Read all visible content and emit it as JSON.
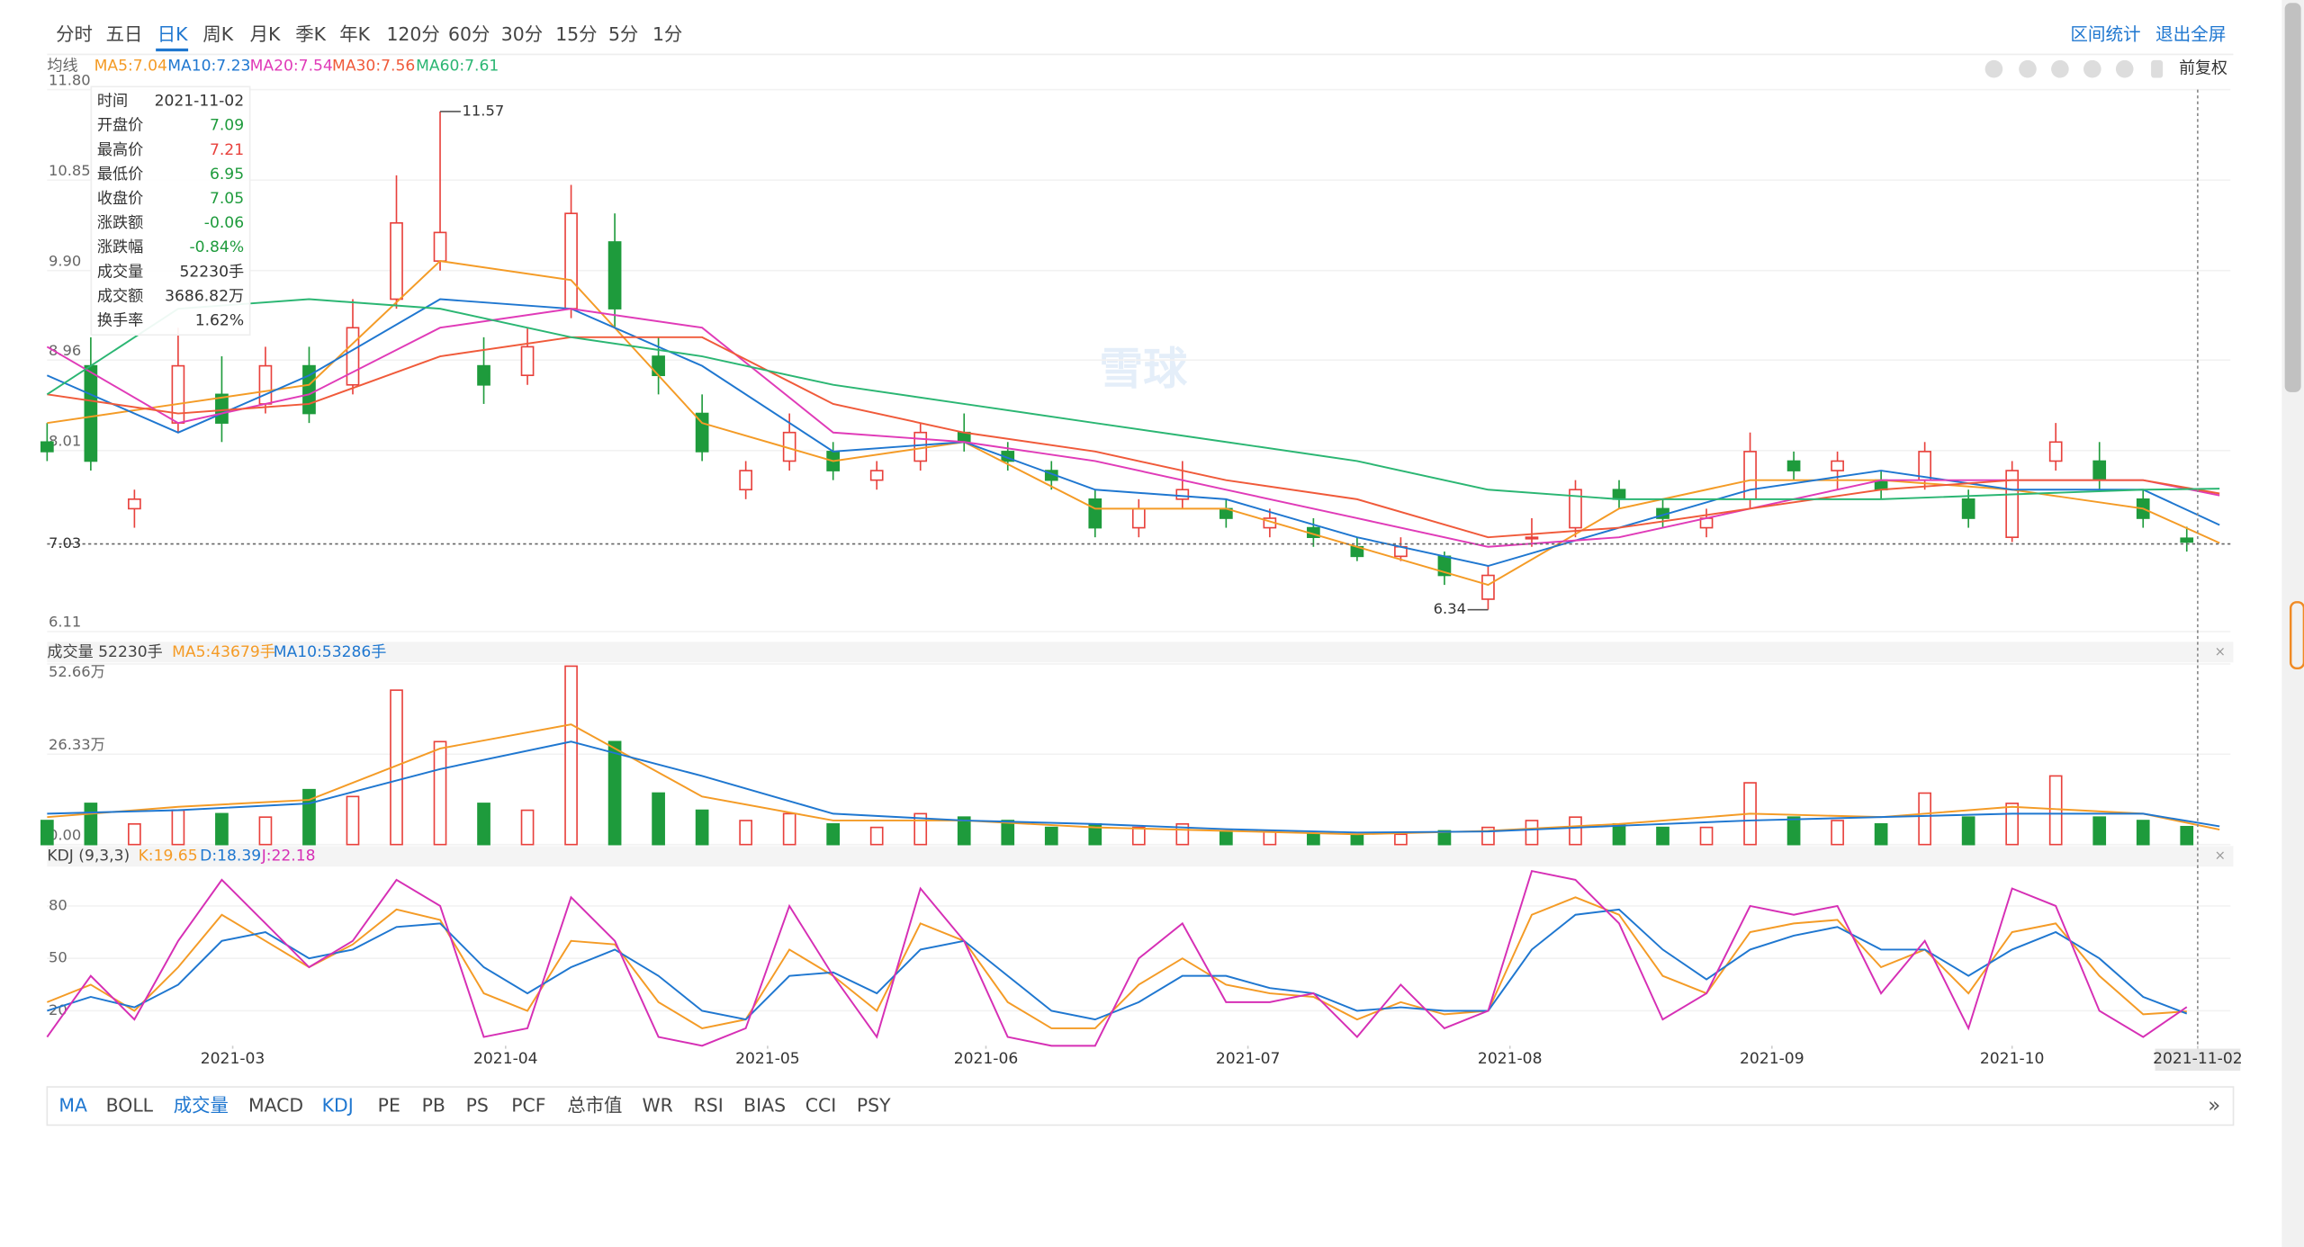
{
  "toolbar": {
    "periods": [
      {
        "label": "分时"
      },
      {
        "label": "五日"
      },
      {
        "label": "日K",
        "active": true
      },
      {
        "label": "周K"
      },
      {
        "label": "月K"
      },
      {
        "label": "季K"
      },
      {
        "label": "年K"
      },
      {
        "label": "120分"
      },
      {
        "label": "60分"
      },
      {
        "label": "30分"
      },
      {
        "label": "15分"
      },
      {
        "label": "5分"
      },
      {
        "label": "1分"
      }
    ],
    "actions": [
      "区间统计",
      "退出全屏"
    ]
  },
  "ma_header": {
    "label": "均线",
    "items": [
      {
        "text": "MA5:7.04",
        "color": "#f49b26"
      },
      {
        "text": "MA10:7.23",
        "color": "#1f77d0"
      },
      {
        "text": "MA20:7.54",
        "color": "#e03bb8"
      },
      {
        "text": "MA30:7.56",
        "color": "#f05a3a"
      },
      {
        "text": "MA60:7.61",
        "color": "#2bb673"
      }
    ],
    "adjust": "前复权"
  },
  "watermark": "雪球",
  "tooltip": {
    "rows": [
      {
        "label": "时间",
        "value": "2021-11-02",
        "color": "#333333"
      },
      {
        "label": "开盘价",
        "value": "7.09",
        "color": "#1e9b3c"
      },
      {
        "label": "最高价",
        "value": "7.21",
        "color": "#e8413c"
      },
      {
        "label": "最低价",
        "value": "6.95",
        "color": "#1e9b3c"
      },
      {
        "label": "收盘价",
        "value": "7.05",
        "color": "#1e9b3c"
      },
      {
        "label": "涨跌额",
        "value": "-0.06",
        "color": "#1e9b3c"
      },
      {
        "label": "涨跌幅",
        "value": "-0.84%",
        "color": "#1e9b3c"
      },
      {
        "label": "成交量",
        "value": "52230手",
        "color": "#333333"
      },
      {
        "label": "成交额",
        "value": "3686.82万",
        "color": "#333333"
      },
      {
        "label": "换手率",
        "value": "1.62%",
        "color": "#333333"
      }
    ]
  },
  "chart_data": [
    {
      "type": "candlestick",
      "up_color": "#e8413c",
      "down_color": "#1e9b3c",
      "xlim": [
        0,
        200
      ],
      "x": [
        0,
        4,
        8,
        12,
        16,
        20,
        24,
        28,
        32,
        36,
        40,
        44,
        48,
        52,
        56,
        60,
        64,
        68,
        72,
        76,
        80,
        84,
        88,
        92,
        96,
        100,
        104,
        108,
        112,
        116,
        120,
        124,
        128,
        132,
        136,
        140,
        144,
        148,
        152,
        156,
        160,
        164,
        168,
        172,
        176,
        180,
        184,
        188,
        192,
        196
      ],
      "open": [
        8.1,
        8.9,
        7.4,
        8.3,
        8.6,
        8.5,
        8.9,
        8.7,
        9.6,
        10.0,
        8.9,
        8.8,
        9.5,
        10.2,
        9.0,
        8.4,
        7.6,
        7.9,
        8.0,
        7.7,
        7.9,
        8.2,
        8.0,
        7.8,
        7.5,
        7.2,
        7.5,
        7.4,
        7.2,
        7.2,
        7.0,
        6.9,
        6.9,
        6.45,
        7.1,
        7.2,
        7.6,
        7.4,
        7.2,
        7.5,
        7.9,
        7.8,
        7.7,
        7.7,
        7.5,
        7.1,
        7.9,
        7.9,
        7.5,
        7.09
      ],
      "high": [
        8.3,
        9.2,
        7.6,
        9.3,
        9.0,
        9.1,
        9.1,
        9.6,
        10.9,
        11.57,
        9.2,
        9.3,
        10.8,
        10.5,
        9.2,
        8.6,
        7.9,
        8.4,
        8.1,
        7.9,
        8.3,
        8.4,
        8.1,
        7.9,
        7.6,
        7.5,
        7.9,
        7.5,
        7.4,
        7.3,
        7.1,
        7.1,
        6.95,
        6.8,
        7.3,
        7.7,
        7.7,
        7.5,
        7.4,
        8.2,
        8.0,
        8.0,
        7.8,
        8.1,
        7.6,
        7.9,
        8.3,
        8.1,
        7.6,
        7.21
      ],
      "low": [
        7.9,
        7.8,
        7.2,
        8.2,
        8.1,
        8.4,
        8.3,
        8.6,
        9.5,
        9.9,
        8.5,
        8.7,
        9.4,
        9.3,
        8.6,
        7.9,
        7.5,
        7.8,
        7.7,
        7.6,
        7.8,
        8.0,
        7.8,
        7.6,
        7.1,
        7.1,
        7.4,
        7.2,
        7.1,
        7.0,
        6.85,
        6.85,
        6.6,
        6.34,
        7.0,
        7.1,
        7.4,
        7.2,
        7.1,
        7.4,
        7.7,
        7.6,
        7.5,
        7.6,
        7.2,
        7.05,
        7.8,
        7.6,
        7.2,
        6.95
      ],
      "close": [
        8.0,
        7.9,
        7.5,
        8.9,
        8.3,
        8.9,
        8.4,
        9.3,
        10.4,
        10.3,
        8.7,
        9.1,
        10.5,
        9.5,
        8.8,
        8.0,
        7.8,
        8.2,
        7.8,
        7.8,
        8.2,
        8.1,
        7.9,
        7.7,
        7.2,
        7.4,
        7.6,
        7.3,
        7.3,
        7.1,
        6.9,
        7.0,
        6.7,
        6.7,
        7.1,
        7.6,
        7.5,
        7.3,
        7.3,
        8.0,
        7.8,
        7.9,
        7.6,
        8.0,
        7.3,
        7.8,
        8.1,
        7.7,
        7.3,
        7.05
      ],
      "ma": [
        {
          "color": "#f49b26",
          "x": [
            0,
            12,
            24,
            36,
            48,
            60,
            72,
            84,
            96,
            108,
            120,
            132,
            144,
            156,
            168,
            180,
            192,
            199
          ],
          "values": [
            8.3,
            8.5,
            8.7,
            10.0,
            9.8,
            8.3,
            7.9,
            8.1,
            7.4,
            7.4,
            7.0,
            6.6,
            7.4,
            7.7,
            7.7,
            7.6,
            7.4,
            7.04
          ]
        },
        {
          "color": "#1f77d0",
          "x": [
            0,
            12,
            24,
            36,
            48,
            60,
            72,
            84,
            96,
            108,
            120,
            132,
            144,
            156,
            168,
            180,
            192,
            199
          ],
          "values": [
            8.8,
            8.2,
            8.8,
            9.6,
            9.5,
            8.9,
            8.0,
            8.1,
            7.6,
            7.5,
            7.1,
            6.8,
            7.2,
            7.6,
            7.8,
            7.6,
            7.6,
            7.23
          ]
        },
        {
          "color": "#e03bb8",
          "x": [
            0,
            12,
            24,
            36,
            48,
            60,
            72,
            84,
            96,
            108,
            120,
            132,
            144,
            156,
            168,
            180,
            192,
            199
          ],
          "values": [
            9.1,
            8.3,
            8.6,
            9.3,
            9.5,
            9.3,
            8.2,
            8.1,
            7.9,
            7.6,
            7.3,
            7.0,
            7.1,
            7.4,
            7.7,
            7.7,
            7.7,
            7.54
          ]
        },
        {
          "color": "#f05a3a",
          "x": [
            0,
            12,
            24,
            36,
            48,
            60,
            72,
            84,
            96,
            108,
            120,
            132,
            144,
            156,
            168,
            180,
            192,
            199
          ],
          "values": [
            8.6,
            8.4,
            8.5,
            9.0,
            9.2,
            9.2,
            8.5,
            8.2,
            8.0,
            7.7,
            7.5,
            7.1,
            7.2,
            7.4,
            7.6,
            7.7,
            7.7,
            7.56
          ]
        },
        {
          "color": "#2bb673",
          "x": [
            0,
            12,
            24,
            36,
            48,
            60,
            72,
            84,
            96,
            108,
            120,
            132,
            144,
            156,
            168,
            180,
            192,
            199
          ],
          "values": [
            8.6,
            9.5,
            9.6,
            9.5,
            9.2,
            9.0,
            8.7,
            8.5,
            8.3,
            8.1,
            7.9,
            7.6,
            7.5,
            7.5,
            7.5,
            7.55,
            7.6,
            7.61
          ]
        }
      ],
      "ylim": [
        6.11,
        11.8
      ],
      "yticks": [
        {
          "value": 11.8,
          "label": "11.80"
        },
        10.85,
        {
          "value": 9.9,
          "label": "9.90"
        },
        8.96,
        8.01,
        6.11
      ],
      "price_line": 7.03,
      "annotations": [
        {
          "x": 36,
          "value": 11.57
        },
        {
          "x": 132,
          "value": 6.34
        }
      ]
    },
    {
      "type": "bar",
      "header": {
        "label": "成交量 52230手",
        "items": [
          {
            "text": "MA5:43679手",
            "color": "#f49b26"
          },
          {
            "text": "MA10:53286手",
            "color": "#1f77d0"
          }
        ]
      },
      "xlim": [
        0,
        200
      ],
      "x": [
        0,
        4,
        8,
        12,
        16,
        20,
        24,
        28,
        32,
        36,
        40,
        44,
        48,
        52,
        56,
        60,
        64,
        68,
        72,
        76,
        80,
        84,
        88,
        92,
        96,
        100,
        104,
        108,
        112,
        116,
        120,
        124,
        128,
        132,
        136,
        140,
        144,
        148,
        152,
        156,
        160,
        164,
        168,
        172,
        176,
        180,
        184,
        188,
        192,
        196
      ],
      "values": [
        7,
        12,
        6,
        10,
        9,
        8,
        16,
        14,
        45,
        30,
        12,
        10,
        52,
        30,
        15,
        10,
        7,
        9,
        6,
        5,
        9,
        8,
        7,
        5,
        6,
        5,
        6,
        4,
        4,
        3,
        3,
        3,
        4,
        5,
        7,
        8,
        6,
        5,
        5,
        18,
        8,
        7,
        6,
        15,
        8,
        12,
        20,
        8,
        7,
        5.223
      ],
      "ma": [
        {
          "color": "#f49b26",
          "x": [
            0,
            12,
            24,
            36,
            48,
            60,
            72,
            84,
            96,
            108,
            120,
            132,
            144,
            156,
            168,
            180,
            192,
            199
          ],
          "values": [
            8,
            11,
            13,
            28,
            35,
            14,
            7,
            7,
            5,
            4,
            3,
            4,
            6,
            9,
            8,
            11,
            9,
            4.37
          ]
        },
        {
          "color": "#1f77d0",
          "x": [
            0,
            12,
            24,
            36,
            48,
            60,
            72,
            84,
            96,
            108,
            120,
            132,
            144,
            156,
            168,
            180,
            192,
            199
          ],
          "values": [
            9,
            10,
            12,
            22,
            30,
            20,
            9,
            7,
            6,
            4.5,
            3.5,
            3.8,
            5.5,
            7,
            8,
            9,
            9,
            5.33
          ]
        }
      ],
      "ylim": [
        0,
        52.66
      ],
      "yticks": [
        {
          "value": 0,
          "label": "0.00"
        },
        {
          "value": 26.33,
          "label": "26.33万"
        },
        {
          "value": 52.66,
          "label": "52.66万"
        }
      ]
    },
    {
      "type": "line",
      "header": {
        "label": "KDJ (9,3,3)",
        "items": [
          {
            "text": "K:19.65",
            "color": "#f49b26"
          },
          {
            "text": "D:18.39",
            "color": "#1f77d0"
          },
          {
            "text": "J:22.18",
            "color": "#d62fb5"
          }
        ]
      },
      "xlim": [
        0,
        200
      ],
      "x": [
        0,
        4,
        8,
        12,
        16,
        20,
        24,
        28,
        32,
        36,
        40,
        44,
        48,
        52,
        56,
        60,
        64,
        68,
        72,
        76,
        80,
        84,
        88,
        92,
        96,
        100,
        104,
        108,
        112,
        116,
        120,
        124,
        128,
        132,
        136,
        140,
        144,
        148,
        152,
        156,
        160,
        164,
        168,
        172,
        176,
        180,
        184,
        188,
        192,
        196
      ],
      "series": [
        {
          "color": "#f49b26",
          "values": [
            25,
            35,
            20,
            45,
            75,
            60,
            45,
            58,
            78,
            72,
            30,
            20,
            60,
            58,
            25,
            10,
            15,
            55,
            40,
            20,
            70,
            60,
            25,
            10,
            10,
            35,
            50,
            35,
            30,
            28,
            15,
            25,
            18,
            20,
            75,
            85,
            75,
            40,
            30,
            65,
            70,
            72,
            45,
            55,
            30,
            65,
            70,
            40,
            18,
            19.65
          ]
        },
        {
          "color": "#1f77d0",
          "values": [
            20,
            28,
            22,
            35,
            60,
            65,
            50,
            55,
            68,
            70,
            45,
            30,
            45,
            55,
            40,
            20,
            15,
            40,
            42,
            30,
            55,
            60,
            40,
            20,
            15,
            25,
            40,
            40,
            33,
            30,
            20,
            22,
            20,
            20,
            55,
            75,
            78,
            55,
            38,
            55,
            63,
            68,
            55,
            55,
            40,
            55,
            65,
            50,
            28,
            18.39
          ]
        },
        {
          "color": "#d62fb5",
          "values": [
            5,
            40,
            15,
            60,
            95,
            70,
            45,
            60,
            95,
            80,
            5,
            10,
            85,
            60,
            5,
            0,
            10,
            80,
            40,
            5,
            90,
            60,
            5,
            0,
            0,
            50,
            70,
            25,
            25,
            30,
            5,
            35,
            10,
            20,
            100,
            95,
            70,
            15,
            30,
            80,
            75,
            80,
            30,
            60,
            10,
            90,
            80,
            20,
            5,
            22.18
          ]
        }
      ],
      "ylim": [
        0,
        100
      ],
      "yticks": [
        20,
        50,
        80
      ],
      "xticks": [
        {
          "value": 17,
          "label": "2021-03"
        },
        {
          "value": 42,
          "label": "2021-04"
        },
        {
          "value": 66,
          "label": "2021-05"
        },
        {
          "value": 86,
          "label": "2021-06"
        },
        {
          "value": 110,
          "label": "2021-07"
        },
        {
          "value": 134,
          "label": "2021-08"
        },
        {
          "value": 158,
          "label": "2021-09"
        },
        {
          "value": 180,
          "label": "2021-10"
        },
        {
          "value": 197,
          "label": "2021-11-02"
        }
      ]
    }
  ],
  "indicator_tabs": [
    {
      "label": "MA",
      "active": true
    },
    {
      "label": "BOLL"
    },
    {
      "label": "成交量",
      "active": true
    },
    {
      "label": "MACD"
    },
    {
      "label": "KDJ",
      "active": true
    },
    {
      "label": "PE"
    },
    {
      "label": "PB"
    },
    {
      "label": "PS"
    },
    {
      "label": "PCF"
    },
    {
      "label": "总市值"
    },
    {
      "label": "WR"
    },
    {
      "label": "RSI"
    },
    {
      "label": "BIAS"
    },
    {
      "label": "CCI"
    },
    {
      "label": "PSY"
    }
  ]
}
